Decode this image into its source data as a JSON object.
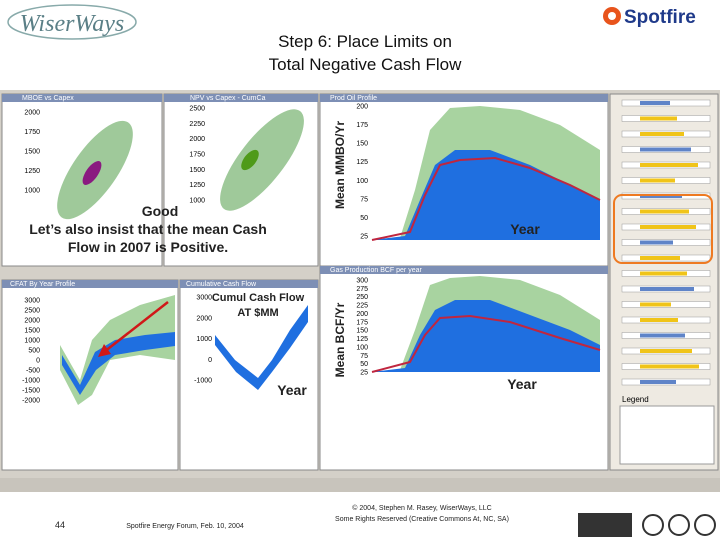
{
  "header": {
    "logo": "WiserWays",
    "brand": "Spotfire",
    "title_lines": [
      "Step 6: Place Limits on",
      "Total Negative Cash Flow"
    ]
  },
  "panels": {
    "scatter_mboe": {
      "title": "MBOE vs Capex",
      "yticks": [
        "2000",
        "1750",
        "1500",
        "1250",
        "1000"
      ]
    },
    "scatter_npv": {
      "title": "NPV vs Capex - CumCa",
      "yticks": [
        "2500",
        "2250",
        "2000",
        "1750",
        "1500",
        "1250",
        "1000"
      ]
    },
    "prod_oil": {
      "title": "Prod Oil Profile",
      "axis_label": "Mean MMBO/Yr",
      "x_label": "Year",
      "yticks": [
        "200",
        "175",
        "150",
        "125",
        "100",
        "75",
        "50",
        "25"
      ]
    },
    "cfat": {
      "title": "CFAT By Year Profile",
      "yticks": [
        "3000",
        "2500",
        "2000",
        "1500",
        "1000",
        "500",
        "0",
        "-500",
        "-1000",
        "-1500",
        "-2000"
      ]
    },
    "cum_cash": {
      "title": "Cumulative Cash Flow",
      "label_lines": [
        "Cumul Cash Flow",
        "AT $MM"
      ],
      "x_label": "Year",
      "yticks": [
        "3000",
        "2000",
        "1000",
        "0",
        "-1000"
      ]
    },
    "gas": {
      "title": "Gas Production BCF per year",
      "axis_label": "Mean BCF/Yr",
      "x_label": "Year",
      "yticks": [
        "300",
        "275",
        "250",
        "225",
        "200",
        "175",
        "150",
        "125",
        "100",
        "75",
        "50",
        "25"
      ]
    }
  },
  "annotation": {
    "good": "Good",
    "lines": [
      "Let’s also insist that the mean Cash",
      "Flow in 2007 is Positive."
    ]
  },
  "sidebar": {
    "title": "Legend"
  },
  "footer": {
    "page": "44",
    "event": "Spotfire Energy Forum, Feb. 10, 2004",
    "copyright": [
      "© 2004, Stephen M. Rasey, WiserWays, LLC",
      "Some Rights Reserved (Creative Commons At, NC, SA)"
    ]
  }
}
